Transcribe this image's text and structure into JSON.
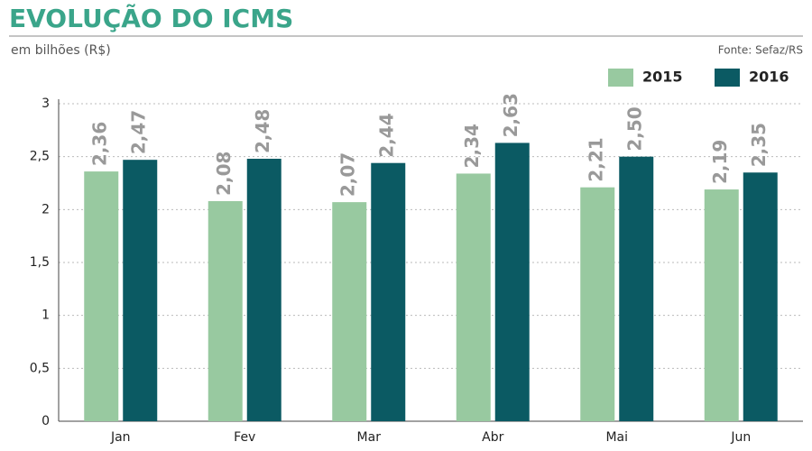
{
  "chart_data": {
    "type": "bar",
    "title": "EVOLUÇÃO DO ICMS",
    "subtitle": "em bilhões (R$)",
    "source": "Fonte: Sefaz/RS",
    "categories": [
      "Jan",
      "Fev",
      "Mar",
      "Abr",
      "Mai",
      "Jun"
    ],
    "series": [
      {
        "name": "2015",
        "color": "#98c9a0",
        "values": [
          2.36,
          2.08,
          2.07,
          2.34,
          2.21,
          2.19
        ],
        "value_labels": [
          "2,36",
          "2,08",
          "2,07",
          "2,34",
          "2,21",
          "2,19"
        ]
      },
      {
        "name": "2016",
        "color": "#0b5a63",
        "values": [
          2.47,
          2.48,
          2.44,
          2.63,
          2.5,
          2.35
        ],
        "value_labels": [
          "2,47",
          "2,48",
          "2,44",
          "2,63",
          "2,50",
          "2,35"
        ]
      }
    ],
    "ylim": [
      0,
      3
    ],
    "yticks": [
      0,
      {
        "value": 0.5,
        "label": "0,5"
      },
      1,
      {
        "value": 1.5,
        "label": "1,5"
      },
      2,
      {
        "value": 2.5,
        "label": "2,5"
      },
      3
    ],
    "grid": true,
    "legend": "top-right"
  }
}
